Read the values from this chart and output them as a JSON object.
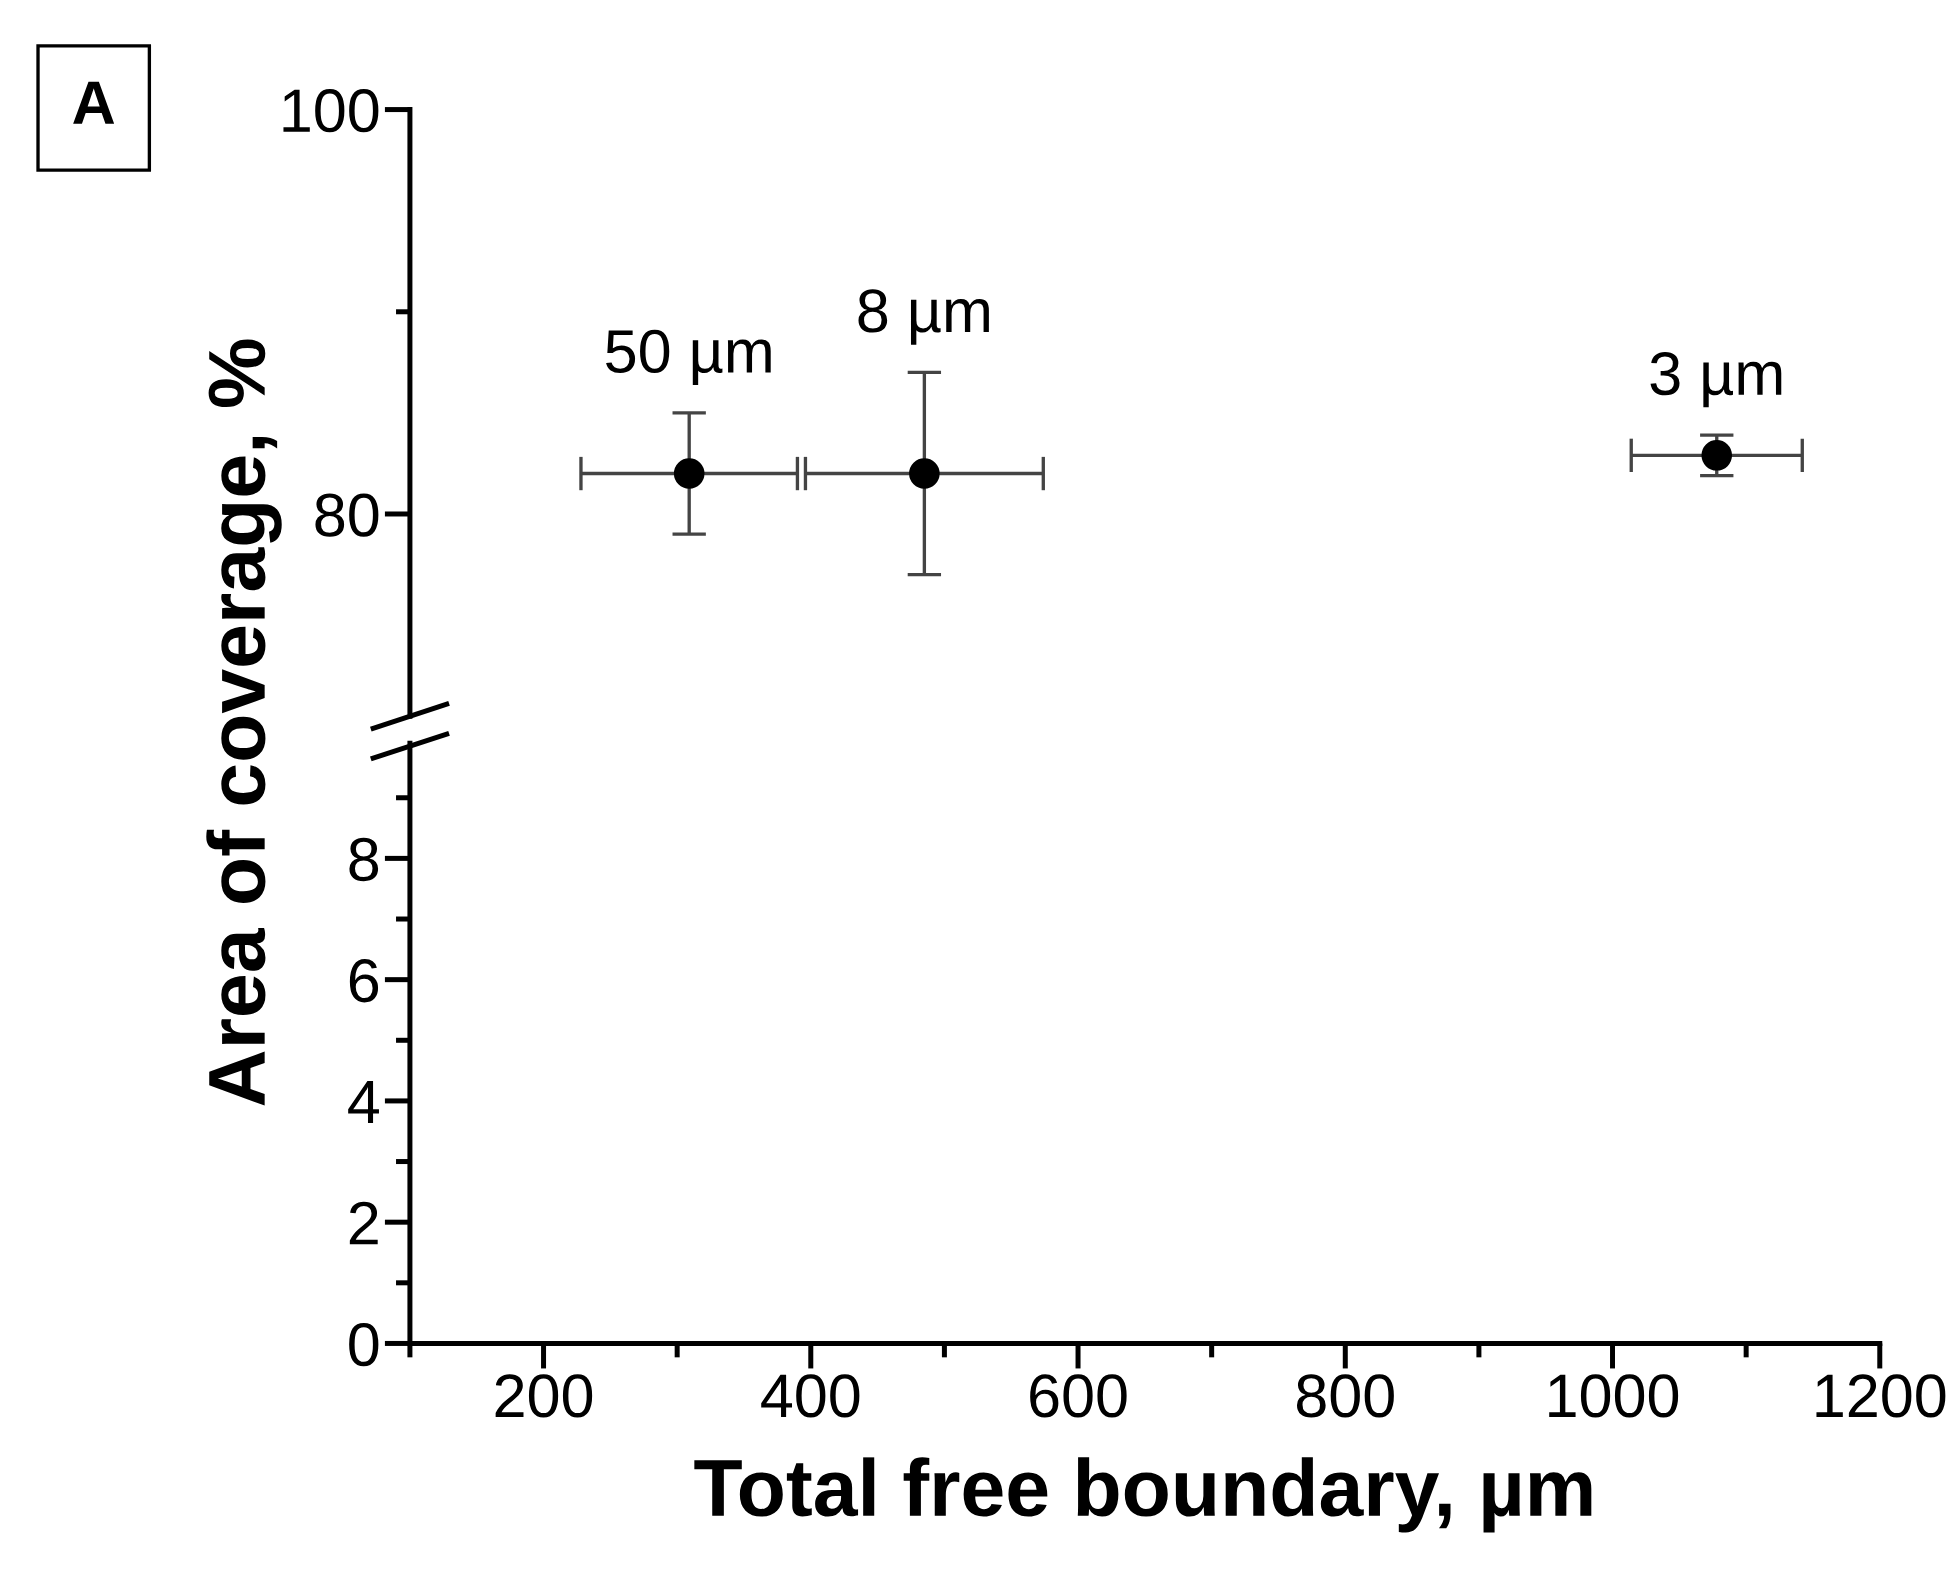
{
  "chart_data": [
    {
      "type": "scatter",
      "ylabel": "Area of coverage, %",
      "color": "#000000",
      "marker": "circle",
      "tick_labels": "y",
      "x": [
        309,
        485,
        1078
      ],
      "values": [
        82,
        82,
        82.9
      ],
      "errors": [
        3,
        5,
        1
      ],
      "xerrors": [
        81,
        89,
        64
      ],
      "xlim": [
        100,
        1200
      ],
      "ylim": [
        70,
        100
      ],
      "yticks": [
        80,
        {
          "value": 90,
          "label": null
        },
        100
      ],
      "annotations": [
        "A",
        {
          "text": "50 µm",
          "x": 309,
          "y": 82
        },
        {
          "text": "8 µm",
          "x": 485,
          "y": 82
        },
        {
          "text": "3 µm",
          "x": 1078,
          "y": 82.9
        }
      ]
    },
    {
      "type": "scatter",
      "xlabel": "Total free boundary, µm",
      "xlim": [
        100,
        1200
      ],
      "xticks": [
        {
          "value": 100,
          "label": null
        },
        200,
        {
          "value": 300,
          "label": null
        },
        400,
        {
          "value": 500,
          "label": null
        },
        600,
        {
          "value": 700,
          "label": null
        },
        800,
        {
          "value": 900,
          "label": null
        },
        1000,
        {
          "value": 1100,
          "label": null
        },
        1200
      ],
      "ylim": [
        0,
        9.9
      ],
      "yticks": [
        0,
        {
          "value": 1,
          "label": null
        },
        2,
        {
          "value": 3,
          "label": null
        },
        4,
        {
          "value": 5,
          "label": null
        },
        6,
        {
          "value": 7,
          "label": null
        },
        8,
        {
          "value": 9,
          "label": null
        }
      ]
    }
  ]
}
